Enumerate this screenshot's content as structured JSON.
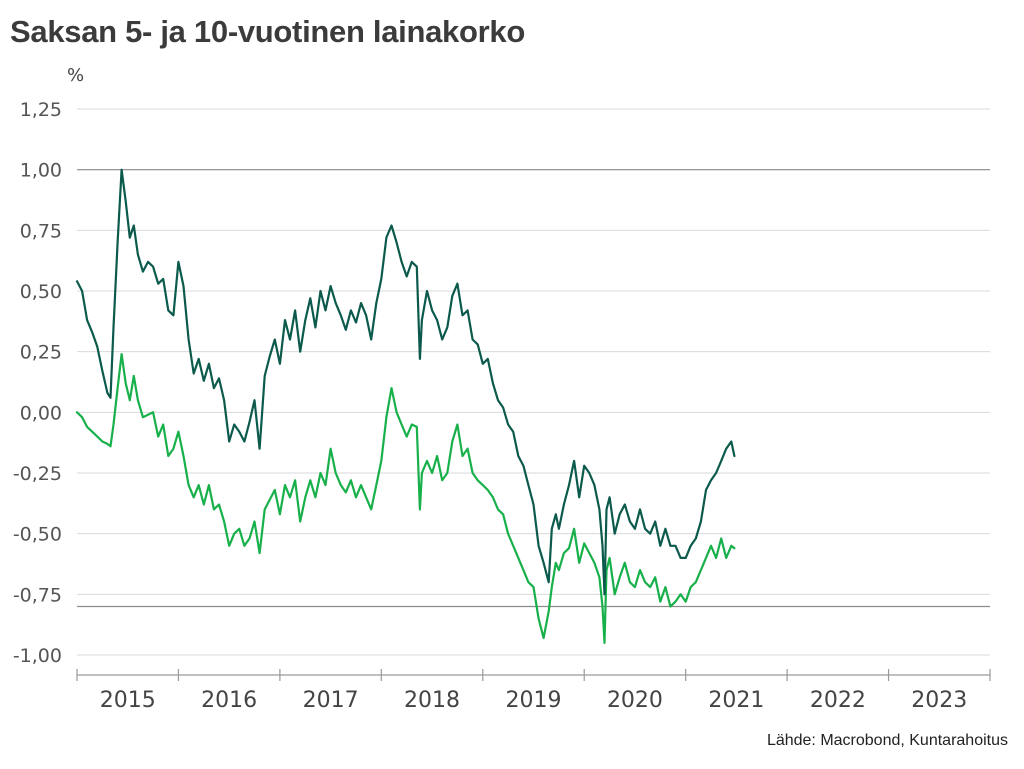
{
  "title": "Saksan 5- ja 10-vuotinen lainakorko",
  "source": "Lähde: Macrobond, Kuntarahoitus",
  "colors": {
    "series_10y": "#0b5a4c",
    "series_5y": "#18b04a",
    "grid": "#d9d9d9",
    "ref_line": "#8c8c8c",
    "axis": "#9a9a9a"
  },
  "chart_data": {
    "type": "line",
    "title": "Saksan 5- ja 10-vuotinen lainakorko",
    "ylabel": "%",
    "xlabel": "",
    "ylim": [
      -1.0,
      1.25
    ],
    "yticks": [
      1.25,
      1.0,
      0.75,
      0.5,
      0.25,
      0.0,
      -0.25,
      -0.5,
      -0.75,
      -1.0
    ],
    "ytick_labels": [
      "1,25",
      "1,00",
      "0,75",
      "0,50",
      "0,25",
      "0,00",
      "-0,25",
      "-0,50",
      "-0,75",
      "-1,00"
    ],
    "xlim": [
      2015.0,
      2024.0
    ],
    "xtick_labels": [
      "2015",
      "2016",
      "2017",
      "2018",
      "2019",
      "2020",
      "2021",
      "2022",
      "2023"
    ],
    "reference_lines": [
      1.0,
      -0.8
    ],
    "grid": true,
    "series": [
      {
        "x": [
          2015.0,
          2015.05,
          2015.1,
          2015.15,
          2015.2,
          2015.25,
          2015.3,
          2015.33,
          2015.36,
          2015.4,
          2015.44,
          2015.48,
          2015.52,
          2015.56,
          2015.6,
          2015.65,
          2015.7,
          2015.75,
          2015.8,
          2015.85,
          2015.9,
          2015.95,
          2016.0,
          2016.05,
          2016.1,
          2016.15,
          2016.2,
          2016.25,
          2016.3,
          2016.35,
          2016.4,
          2016.45,
          2016.5,
          2016.55,
          2016.6,
          2016.65,
          2016.7,
          2016.75,
          2016.8,
          2016.85,
          2016.9,
          2016.95,
          2017.0,
          2017.05,
          2017.1,
          2017.15,
          2017.2,
          2017.25,
          2017.3,
          2017.35,
          2017.4,
          2017.45,
          2017.5,
          2017.55,
          2017.6,
          2017.65,
          2017.7,
          2017.75,
          2017.8,
          2017.85,
          2017.9,
          2017.95,
          2018.0,
          2018.05,
          2018.1,
          2018.15,
          2018.2,
          2018.25,
          2018.3,
          2018.35,
          2018.38,
          2018.4,
          2018.45,
          2018.5,
          2018.55,
          2018.6,
          2018.65,
          2018.7,
          2018.75,
          2018.8,
          2018.85,
          2018.9,
          2018.95,
          2019.0,
          2019.05,
          2019.1,
          2019.15,
          2019.2,
          2019.25,
          2019.3,
          2019.35,
          2019.4,
          2019.45,
          2019.5,
          2019.55,
          2019.6,
          2019.65,
          2019.68,
          2019.72,
          2019.75,
          2019.8,
          2019.85,
          2019.9,
          2019.95,
          2020.0,
          2020.05,
          2020.1,
          2020.15,
          2020.18,
          2020.2,
          2020.22,
          2020.25,
          2020.3,
          2020.35,
          2020.4,
          2020.45,
          2020.5,
          2020.55,
          2020.6,
          2020.65,
          2020.7,
          2020.75,
          2020.8,
          2020.85,
          2020.9,
          2020.95,
          2021.0,
          2021.05,
          2021.1,
          2021.15,
          2021.2,
          2021.25,
          2021.3,
          2021.35,
          2021.4,
          2021.45,
          2021.48
        ],
        "values": [
          0.54,
          0.5,
          0.38,
          0.33,
          0.27,
          0.17,
          0.08,
          0.06,
          0.35,
          0.7,
          1.0,
          0.87,
          0.72,
          0.77,
          0.65,
          0.58,
          0.62,
          0.6,
          0.53,
          0.55,
          0.42,
          0.4,
          0.62,
          0.52,
          0.3,
          0.16,
          0.22,
          0.13,
          0.2,
          0.1,
          0.14,
          0.05,
          -0.12,
          -0.05,
          -0.08,
          -0.12,
          -0.04,
          0.05,
          -0.15,
          0.15,
          0.23,
          0.3,
          0.2,
          0.38,
          0.3,
          0.42,
          0.25,
          0.38,
          0.47,
          0.35,
          0.5,
          0.42,
          0.52,
          0.45,
          0.4,
          0.34,
          0.42,
          0.37,
          0.45,
          0.4,
          0.3,
          0.45,
          0.55,
          0.72,
          0.77,
          0.7,
          0.62,
          0.56,
          0.62,
          0.6,
          0.22,
          0.38,
          0.5,
          0.42,
          0.38,
          0.3,
          0.35,
          0.48,
          0.53,
          0.4,
          0.42,
          0.3,
          0.28,
          0.2,
          0.22,
          0.12,
          0.05,
          0.02,
          -0.05,
          -0.08,
          -0.18,
          -0.22,
          -0.3,
          -0.38,
          -0.55,
          -0.62,
          -0.7,
          -0.48,
          -0.42,
          -0.48,
          -0.38,
          -0.3,
          -0.2,
          -0.35,
          -0.22,
          -0.25,
          -0.3,
          -0.4,
          -0.55,
          -0.75,
          -0.4,
          -0.35,
          -0.5,
          -0.42,
          -0.38,
          -0.45,
          -0.48,
          -0.4,
          -0.48,
          -0.5,
          -0.45,
          -0.55,
          -0.48,
          -0.55,
          -0.55,
          -0.6,
          -0.6,
          -0.55,
          -0.52,
          -0.45,
          -0.32,
          -0.28,
          -0.25,
          -0.2,
          -0.15,
          -0.12,
          -0.18
        ],
        "name": ""
      },
      {
        "x": [
          2015.0,
          2015.05,
          2015.1,
          2015.15,
          2015.2,
          2015.25,
          2015.3,
          2015.33,
          2015.36,
          2015.4,
          2015.44,
          2015.48,
          2015.52,
          2015.56,
          2015.6,
          2015.65,
          2015.7,
          2015.75,
          2015.8,
          2015.85,
          2015.9,
          2015.95,
          2016.0,
          2016.05,
          2016.1,
          2016.15,
          2016.2,
          2016.25,
          2016.3,
          2016.35,
          2016.4,
          2016.45,
          2016.5,
          2016.55,
          2016.6,
          2016.65,
          2016.7,
          2016.75,
          2016.8,
          2016.85,
          2016.9,
          2016.95,
          2017.0,
          2017.05,
          2017.1,
          2017.15,
          2017.2,
          2017.25,
          2017.3,
          2017.35,
          2017.4,
          2017.45,
          2017.5,
          2017.55,
          2017.6,
          2017.65,
          2017.7,
          2017.75,
          2017.8,
          2017.85,
          2017.9,
          2017.95,
          2018.0,
          2018.05,
          2018.1,
          2018.15,
          2018.2,
          2018.25,
          2018.3,
          2018.35,
          2018.38,
          2018.4,
          2018.45,
          2018.5,
          2018.55,
          2018.6,
          2018.65,
          2018.7,
          2018.75,
          2018.8,
          2018.85,
          2018.9,
          2018.95,
          2019.0,
          2019.05,
          2019.1,
          2019.15,
          2019.2,
          2019.25,
          2019.3,
          2019.35,
          2019.4,
          2019.45,
          2019.5,
          2019.55,
          2019.6,
          2019.65,
          2019.68,
          2019.72,
          2019.75,
          2019.8,
          2019.85,
          2019.9,
          2019.95,
          2020.0,
          2020.05,
          2020.1,
          2020.15,
          2020.18,
          2020.2,
          2020.22,
          2020.25,
          2020.3,
          2020.35,
          2020.4,
          2020.45,
          2020.5,
          2020.55,
          2020.6,
          2020.65,
          2020.7,
          2020.75,
          2020.8,
          2020.85,
          2020.9,
          2020.95,
          2021.0,
          2021.05,
          2021.1,
          2021.15,
          2021.2,
          2021.25,
          2021.3,
          2021.35,
          2021.4,
          2021.45,
          2021.48
        ],
        "values": [
          0.0,
          -0.02,
          -0.06,
          -0.08,
          -0.1,
          -0.12,
          -0.13,
          -0.14,
          -0.05,
          0.1,
          0.24,
          0.12,
          0.05,
          0.15,
          0.05,
          -0.02,
          -0.01,
          0.0,
          -0.1,
          -0.05,
          -0.18,
          -0.15,
          -0.08,
          -0.18,
          -0.3,
          -0.35,
          -0.3,
          -0.38,
          -0.3,
          -0.4,
          -0.38,
          -0.45,
          -0.55,
          -0.5,
          -0.48,
          -0.55,
          -0.52,
          -0.45,
          -0.58,
          -0.4,
          -0.36,
          -0.32,
          -0.42,
          -0.3,
          -0.35,
          -0.28,
          -0.45,
          -0.35,
          -0.28,
          -0.35,
          -0.25,
          -0.3,
          -0.15,
          -0.25,
          -0.3,
          -0.33,
          -0.28,
          -0.35,
          -0.3,
          -0.35,
          -0.4,
          -0.3,
          -0.2,
          -0.02,
          0.1,
          0.0,
          -0.05,
          -0.1,
          -0.05,
          -0.06,
          -0.4,
          -0.25,
          -0.2,
          -0.25,
          -0.18,
          -0.28,
          -0.25,
          -0.12,
          -0.05,
          -0.18,
          -0.15,
          -0.25,
          -0.28,
          -0.3,
          -0.32,
          -0.35,
          -0.4,
          -0.42,
          -0.5,
          -0.55,
          -0.6,
          -0.65,
          -0.7,
          -0.72,
          -0.85,
          -0.93,
          -0.82,
          -0.72,
          -0.62,
          -0.65,
          -0.58,
          -0.56,
          -0.48,
          -0.62,
          -0.54,
          -0.58,
          -0.62,
          -0.68,
          -0.8,
          -0.95,
          -0.65,
          -0.6,
          -0.75,
          -0.68,
          -0.62,
          -0.7,
          -0.72,
          -0.65,
          -0.7,
          -0.72,
          -0.68,
          -0.78,
          -0.72,
          -0.8,
          -0.78,
          -0.75,
          -0.78,
          -0.72,
          -0.7,
          -0.65,
          -0.6,
          -0.55,
          -0.6,
          -0.52,
          -0.6,
          -0.55,
          -0.56
        ],
        "name": ""
      }
    ]
  }
}
